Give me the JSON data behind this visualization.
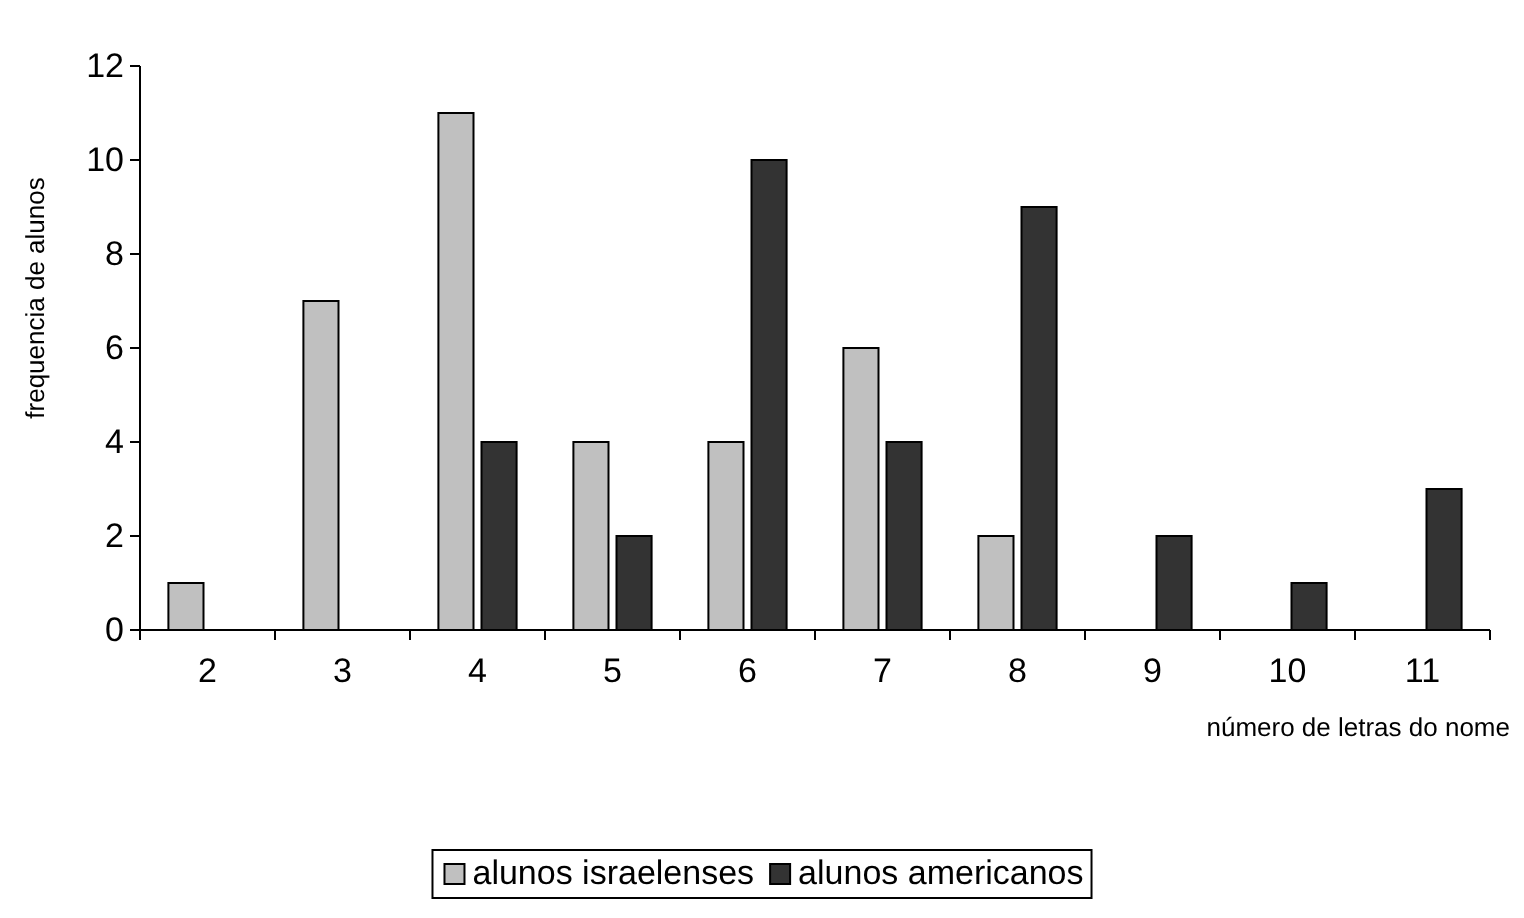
{
  "chart_data": {
    "type": "bar",
    "xlabel": "número de letras do nome",
    "ylabel": "frequencia de alunos",
    "categories": [
      "2",
      "3",
      "4",
      "5",
      "6",
      "7",
      "8",
      "9",
      "10",
      "11"
    ],
    "series": [
      {
        "name": "alunos israelenses",
        "color": "#c0c0c0",
        "values": [
          1,
          7,
          11,
          4,
          4,
          6,
          2,
          0,
          0,
          0
        ]
      },
      {
        "name": "alunos americanos",
        "color": "#333333",
        "values": [
          0,
          0,
          4,
          2,
          10,
          4,
          9,
          2,
          1,
          3
        ]
      }
    ],
    "ylim": [
      0,
      12
    ],
    "yticks": [
      0,
      2,
      4,
      6,
      8,
      10,
      12
    ],
    "grid": false,
    "legend": "bottom"
  }
}
